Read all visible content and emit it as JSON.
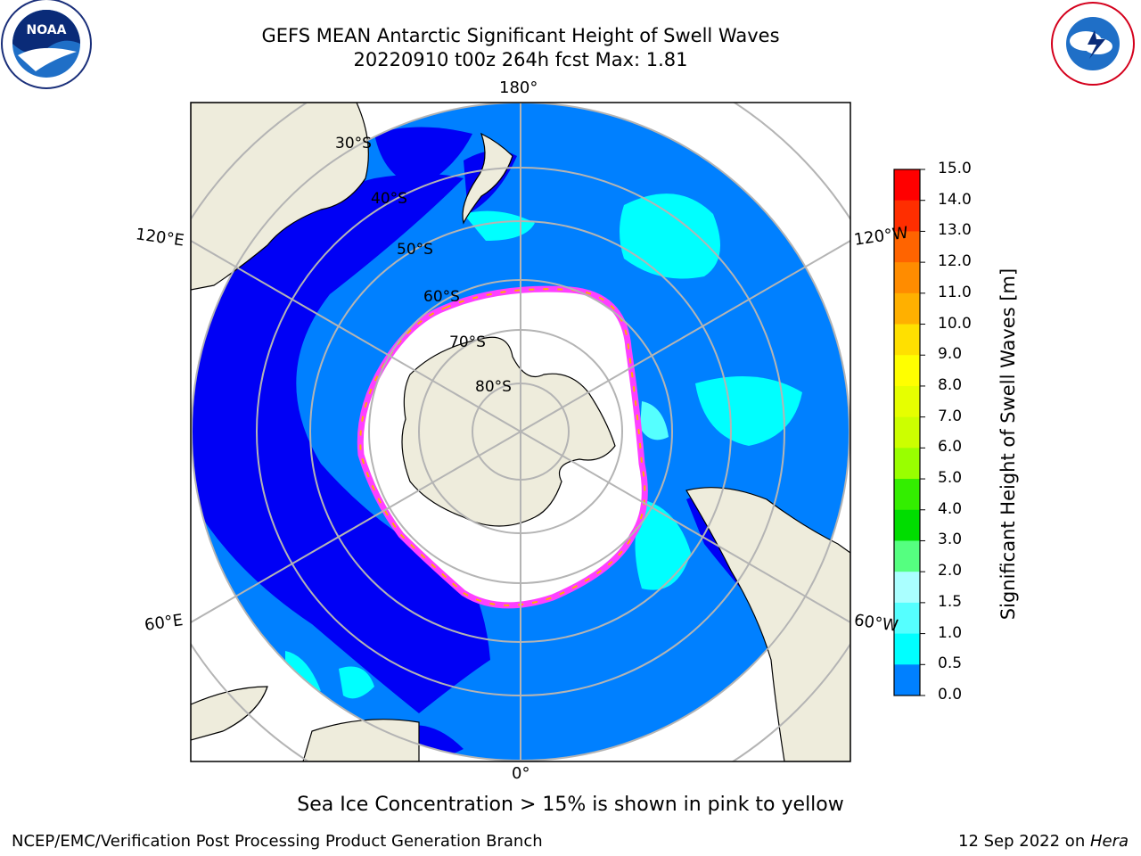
{
  "header": {
    "title": "GEFS MEAN Antarctic Significant Height of Swell Waves",
    "subtitle": "20220910 t00z 264h fcst   Max: 1.81"
  },
  "logos": {
    "left": "NOAA",
    "right": "NATIONAL WEATHER SERVICE"
  },
  "map": {
    "projection": "south-polar-stereographic",
    "lon_labels": {
      "top": "180°",
      "bottom": "0°",
      "upper_left": "120°E",
      "upper_right": "120°W",
      "lower_left": "60°E",
      "lower_right": "60°W"
    },
    "lat_labels": [
      "30°S",
      "40°S",
      "50°S",
      "60°S",
      "70°S",
      "80°S"
    ],
    "colors": {
      "land": "#eeecdc",
      "sea_ice": "#ffffff",
      "swell_0_05": "#0000f5",
      "swell_05_10": "#0080ff",
      "swell_10_15": "#00ffff",
      "swell_15_20": "#55ffff",
      "ice_edge_pink": "#ff40ff",
      "ice_edge_orange": "#ffb000",
      "grid": "#b4b4b4"
    }
  },
  "colorbar": {
    "label": "Significant Height of Swell Waves [m]",
    "ticks": [
      "15.0",
      "14.0",
      "13.0",
      "12.0",
      "11.0",
      "10.0",
      "9.0",
      "8.0",
      "7.0",
      "6.0",
      "5.0",
      "4.0",
      "3.0",
      "2.0",
      "1.5",
      "1.0",
      "0.5",
      "0.0"
    ],
    "colors": [
      "#ff0000",
      "#ff2e00",
      "#ff6400",
      "#ff8c00",
      "#ffb000",
      "#ffe000",
      "#ffff00",
      "#e6ff00",
      "#ccff00",
      "#99ff00",
      "#33ee00",
      "#00dd00",
      "#55ff80",
      "#aaffff",
      "#55ffff",
      "#00ffff",
      "#0080ff",
      "#0000f5"
    ]
  },
  "note": "Sea Ice Concentration > 15% is shown in pink to yellow",
  "footer": {
    "left": "NCEP/EMC/Verification Post Processing Product Generation Branch",
    "date": "12 Sep 2022 on ",
    "machine": "Hera"
  }
}
